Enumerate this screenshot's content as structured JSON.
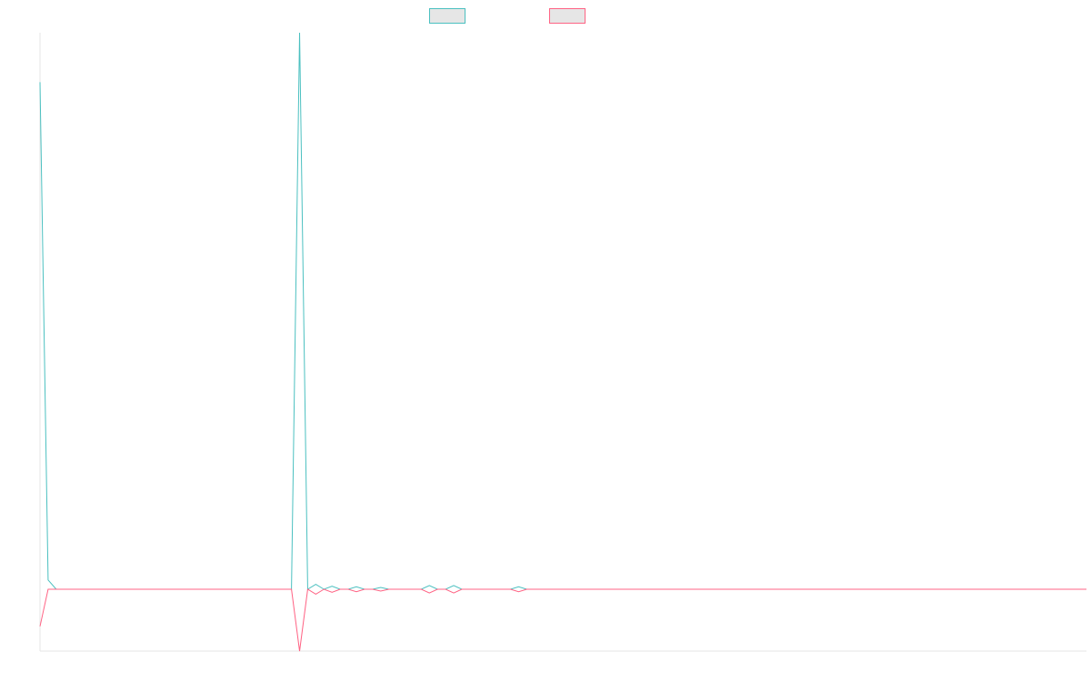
{
  "chart_data": {
    "type": "line",
    "title": "",
    "xlabel": "",
    "ylabel": "",
    "grid": false,
    "legend_position": "top-center",
    "ylim": [
      -1,
      9
    ],
    "x": [
      0,
      1,
      2,
      3,
      4,
      5,
      6,
      7,
      8,
      9,
      10,
      11,
      12,
      13,
      14,
      15,
      16,
      17,
      18,
      19,
      20,
      21,
      22,
      23,
      24,
      25,
      26,
      27,
      28,
      29,
      30,
      31,
      32,
      33,
      34,
      35,
      36,
      37,
      38,
      39,
      40,
      41,
      42,
      43,
      44,
      45,
      46,
      47,
      48,
      49,
      50,
      51,
      52,
      53,
      54,
      55,
      56,
      57,
      58,
      59,
      60,
      61,
      62,
      63,
      64,
      65,
      66,
      67,
      68,
      69,
      70,
      71,
      72,
      73,
      74,
      75,
      76,
      77,
      78,
      79,
      80,
      81,
      82,
      83,
      84,
      85,
      86,
      87,
      88,
      89,
      90,
      91,
      92,
      93,
      94,
      95,
      96,
      97,
      98,
      99,
      100,
      101,
      102,
      103,
      104,
      105,
      106,
      107,
      108,
      109,
      110,
      111,
      112,
      113,
      114,
      115,
      116,
      117,
      118,
      119,
      120,
      121,
      122,
      123,
      124,
      125,
      126,
      127,
      128,
      129
    ],
    "series": [
      {
        "name": "",
        "color": "#4bc0c0",
        "values": [
          8.2,
          0.15,
          0,
          0,
          0,
          0,
          0,
          0,
          0,
          0,
          0,
          0,
          0,
          0,
          0,
          0,
          0,
          0,
          0,
          0,
          0,
          0,
          0,
          0,
          0,
          0,
          0,
          0,
          0,
          0,
          0,
          0,
          9,
          0,
          0.08,
          0,
          0.05,
          0,
          0,
          0.04,
          0,
          0,
          0.03,
          0,
          0,
          0,
          0,
          0,
          0.06,
          0,
          0,
          0.06,
          0,
          0,
          0,
          0,
          0,
          0,
          0,
          0.04,
          0,
          0,
          0,
          0,
          0,
          0,
          0,
          0,
          0,
          0,
          0,
          0,
          0,
          0,
          0,
          0,
          0,
          0,
          0,
          0,
          0,
          0,
          0,
          0,
          0,
          0,
          0,
          0,
          0,
          0,
          0,
          0,
          0,
          0,
          0,
          0,
          0,
          0,
          0,
          0,
          0,
          0,
          0,
          0,
          0,
          0,
          0,
          0,
          0,
          0,
          0,
          0,
          0,
          0,
          0,
          0,
          0,
          0,
          0,
          0,
          0,
          0,
          0,
          0,
          0,
          0,
          0,
          0,
          0,
          0
        ]
      },
      {
        "name": "",
        "color": "#ff6384",
        "values": [
          -0.6,
          0,
          0,
          0,
          0,
          0,
          0,
          0,
          0,
          0,
          0,
          0,
          0,
          0,
          0,
          0,
          0,
          0,
          0,
          0,
          0,
          0,
          0,
          0,
          0,
          0,
          0,
          0,
          0,
          0,
          0,
          0,
          -1,
          0,
          -0.08,
          0,
          -0.05,
          0,
          0,
          -0.04,
          0,
          0,
          -0.03,
          0,
          0,
          0,
          0,
          0,
          -0.06,
          0,
          0,
          -0.06,
          0,
          0,
          0,
          0,
          0,
          0,
          0,
          -0.04,
          0,
          0,
          0,
          0,
          0,
          0,
          0,
          0,
          0,
          0,
          0,
          0,
          0,
          0,
          0,
          0,
          0,
          0,
          0,
          0,
          0,
          0,
          0,
          0,
          0,
          0,
          0,
          0,
          0,
          0,
          0,
          0,
          0,
          0,
          0,
          0,
          0,
          0,
          0,
          0,
          0,
          0,
          0,
          0,
          0,
          0,
          0,
          0,
          0,
          0,
          0,
          0,
          0,
          0,
          0,
          0,
          0,
          0,
          0,
          0,
          0,
          0,
          0,
          0,
          0,
          0,
          0,
          0,
          0,
          0
        ]
      }
    ]
  }
}
